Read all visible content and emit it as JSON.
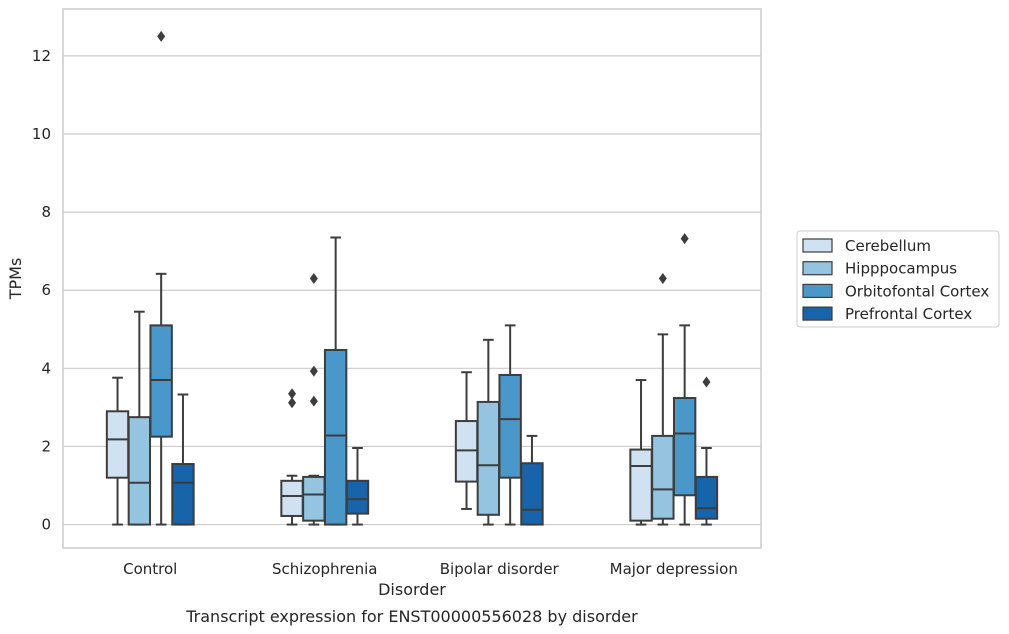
{
  "chart_data": {
    "type": "box",
    "title": "Transcript expression for ENST00000556028 by disorder",
    "xlabel": "Disorder",
    "ylabel": "TPMs",
    "ylim": [
      -0.6,
      13.2
    ],
    "yticks": [
      0,
      2,
      4,
      6,
      8,
      10,
      12
    ],
    "grid": "horizontal",
    "legend_position": "right",
    "categories": [
      "Control",
      "Schizophrenia",
      "Bipolar disorder",
      "Major depression"
    ],
    "series": [
      {
        "name": "Cerebellum",
        "color": "#d0e1f2",
        "boxes": [
          {
            "whislo": 0.0,
            "q1": 1.2,
            "med": 2.18,
            "q3": 2.9,
            "whishi": 3.76,
            "fliers": []
          },
          {
            "whislo": 0.0,
            "q1": 0.22,
            "med": 0.73,
            "q3": 1.12,
            "whishi": 1.25,
            "fliers": [
              3.12,
              3.35
            ]
          },
          {
            "whislo": 0.4,
            "q1": 1.1,
            "med": 1.9,
            "q3": 2.65,
            "whishi": 3.9,
            "fliers": []
          },
          {
            "whislo": 0.0,
            "q1": 0.1,
            "med": 1.5,
            "q3": 1.92,
            "whishi": 3.7,
            "fliers": []
          }
        ]
      },
      {
        "name": "Hipppocampus",
        "color": "#94c4df",
        "boxes": [
          {
            "whislo": 0.0,
            "q1": 0.0,
            "med": 1.07,
            "q3": 2.75,
            "whishi": 5.45,
            "fliers": []
          },
          {
            "whislo": 0.0,
            "q1": 0.1,
            "med": 0.77,
            "q3": 1.22,
            "whishi": 1.25,
            "fliers": [
              3.16,
              3.93,
              6.3
            ]
          },
          {
            "whislo": 0.0,
            "q1": 0.25,
            "med": 1.52,
            "q3": 3.14,
            "whishi": 4.73,
            "fliers": []
          },
          {
            "whislo": 0.0,
            "q1": 0.15,
            "med": 0.9,
            "q3": 2.27,
            "whishi": 4.87,
            "fliers": [
              6.3
            ]
          }
        ]
      },
      {
        "name": "Orbitofontal Cortex",
        "color": "#4a98c9",
        "boxes": [
          {
            "whislo": 0.0,
            "q1": 2.25,
            "med": 3.7,
            "q3": 5.1,
            "whishi": 6.42,
            "fliers": [
              12.5
            ]
          },
          {
            "whislo": 0.0,
            "q1": 0.0,
            "med": 2.28,
            "q3": 4.47,
            "whishi": 7.35,
            "fliers": []
          },
          {
            "whislo": 0.0,
            "q1": 1.2,
            "med": 2.7,
            "q3": 3.83,
            "whishi": 5.1,
            "fliers": []
          },
          {
            "whislo": 0.0,
            "q1": 0.75,
            "med": 2.33,
            "q3": 3.24,
            "whishi": 5.1,
            "fliers": [
              7.32
            ]
          }
        ]
      },
      {
        "name": "Prefrontal Cortex",
        "color": "#1764ab",
        "boxes": [
          {
            "whislo": 0.0,
            "q1": 0.0,
            "med": 1.07,
            "q3": 1.55,
            "whishi": 3.33,
            "fliers": []
          },
          {
            "whislo": 0.0,
            "q1": 0.28,
            "med": 0.65,
            "q3": 1.12,
            "whishi": 1.96,
            "fliers": []
          },
          {
            "whislo": 0.0,
            "q1": 0.0,
            "med": 0.38,
            "q3": 1.57,
            "whishi": 2.27,
            "fliers": []
          },
          {
            "whislo": 0.0,
            "q1": 0.15,
            "med": 0.42,
            "q3": 1.22,
            "whishi": 1.96,
            "fliers": [
              3.65
            ]
          }
        ]
      }
    ]
  }
}
